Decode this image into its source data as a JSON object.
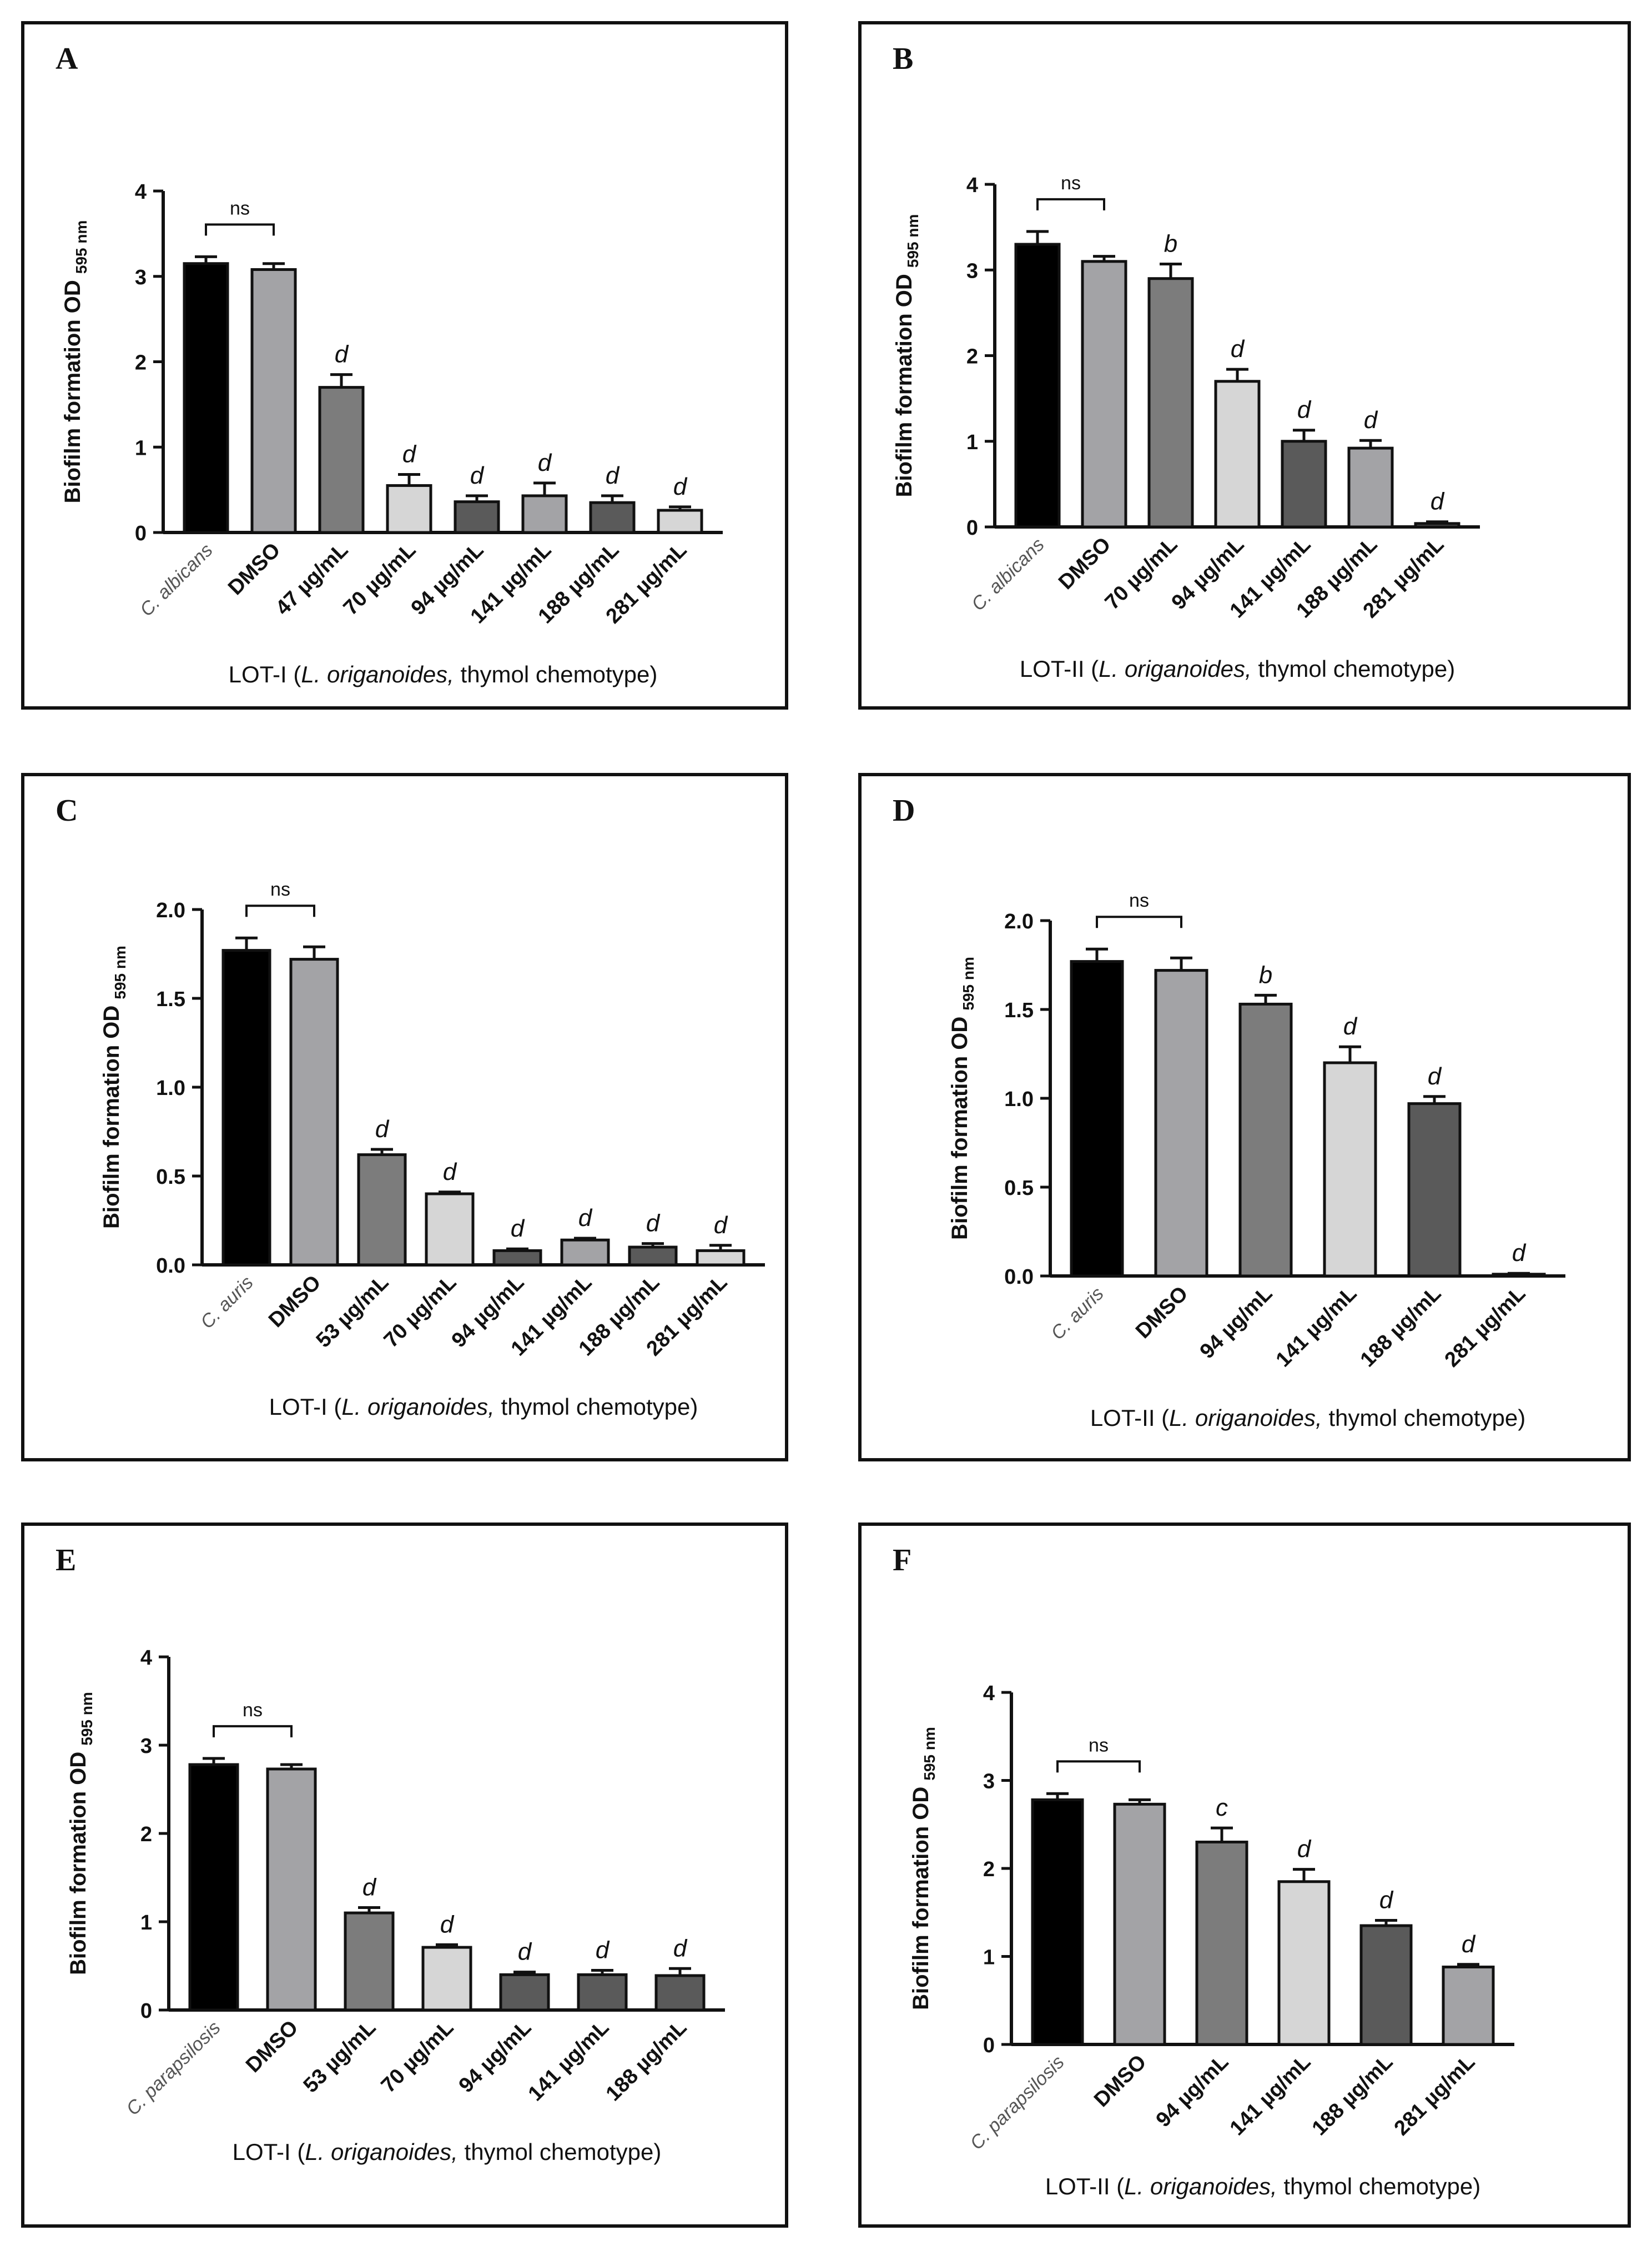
{
  "colors": {
    "axis": "#111111",
    "bar_fills": [
      "#000000",
      "#a3a3a6",
      "#7c7c7c",
      "#d6d6d6",
      "#5a5a5a",
      "#a3a3a6",
      "#e8e8e8"
    ]
  },
  "chart_data": [
    {
      "panel": "A",
      "type": "bar",
      "ylabel": "Biofilm formation OD",
      "ylabel_sub": "595 nm",
      "xlabel_pre": "LOT-I (",
      "xlabel_italic": "L. origanoides,",
      "xlabel_post": " thymol chemotype)",
      "ylim": [
        0,
        4
      ],
      "yticks": [
        "0",
        "1",
        "2",
        "3",
        "4"
      ],
      "categories": [
        "C. albicans",
        "DMSO",
        "47 µg/mL",
        "70 µg/mL",
        "94 µg/mL",
        "141 µg/mL",
        "188 µg/mL",
        "281 µg/mL"
      ],
      "values": [
        3.15,
        3.08,
        1.7,
        0.55,
        0.36,
        0.43,
        0.35,
        0.26
      ],
      "errors": [
        0.08,
        0.07,
        0.15,
        0.13,
        0.07,
        0.15,
        0.08,
        0.04
      ],
      "significance": [
        "",
        "",
        "d",
        "d",
        "d",
        "d",
        "d",
        "d"
      ],
      "ns_label": "ns",
      "fill_index": [
        0,
        1,
        2,
        3,
        4,
        1,
        4,
        3
      ]
    },
    {
      "panel": "B",
      "type": "bar",
      "ylabel": "Biofilm formation OD",
      "ylabel_sub": "595 nm",
      "xlabel_pre": "LOT-II (",
      "xlabel_italic": "L. origanoides,",
      "xlabel_post": " thymol chemotype)",
      "ylim": [
        0,
        4
      ],
      "yticks": [
        "0",
        "1",
        "2",
        "3",
        "4"
      ],
      "categories": [
        "C. albicans",
        "DMSO",
        "70 µg/mL",
        "94 µg/mL",
        "141 µg/mL",
        "188 µg/mL",
        "281 µg/mL"
      ],
      "values": [
        3.3,
        3.1,
        2.9,
        1.7,
        1.0,
        0.92,
        0.04
      ],
      "errors": [
        0.15,
        0.06,
        0.17,
        0.14,
        0.13,
        0.09,
        0.02
      ],
      "significance": [
        "",
        "",
        "b",
        "d",
        "d",
        "d",
        "d"
      ],
      "ns_label": "ns",
      "fill_index": [
        0,
        1,
        2,
        3,
        4,
        1,
        4
      ]
    },
    {
      "panel": "C",
      "type": "bar",
      "ylabel": "Biofilm formation OD",
      "ylabel_sub": "595 nm",
      "xlabel_pre": "LOT-I (",
      "xlabel_italic": "L. origanoides,",
      "xlabel_post": " thymol chemotype)",
      "ylim": [
        0,
        2.0
      ],
      "yticks": [
        "0.0",
        "0.5",
        "1.0",
        "1.5",
        "2.0"
      ],
      "categories": [
        "C. auris",
        "DMSO",
        "53 µg/mL",
        "70 µg/mL",
        "94 µg/mL",
        "141 µg/mL",
        "188 µg/mL",
        "281 µg/mL"
      ],
      "values": [
        1.77,
        1.72,
        0.62,
        0.4,
        0.08,
        0.14,
        0.1,
        0.08
      ],
      "errors": [
        0.07,
        0.07,
        0.03,
        0.01,
        0.01,
        0.01,
        0.02,
        0.03
      ],
      "significance": [
        "",
        "",
        "d",
        "d",
        "d",
        "d",
        "d",
        "d"
      ],
      "ns_label": "ns",
      "fill_index": [
        0,
        1,
        2,
        3,
        4,
        1,
        4,
        3
      ]
    },
    {
      "panel": "D",
      "type": "bar",
      "ylabel": "Biofilm formation OD",
      "ylabel_sub": "595 nm",
      "xlabel_pre": "LOT-II (",
      "xlabel_italic": "L. origanoides,",
      "xlabel_post": " thymol chemotype)",
      "ylim": [
        0,
        2.0
      ],
      "yticks": [
        "0.0",
        "0.5",
        "1.0",
        "1.5",
        "2.0"
      ],
      "categories": [
        "C. auris",
        "DMSO",
        "94 µg/mL",
        "141 µg/mL",
        "188 µg/mL",
        "281 µg/mL"
      ],
      "values": [
        1.77,
        1.72,
        1.53,
        1.2,
        0.97,
        0.01
      ],
      "errors": [
        0.07,
        0.07,
        0.05,
        0.09,
        0.04,
        0.005
      ],
      "significance": [
        "",
        "",
        "b",
        "d",
        "d",
        "d"
      ],
      "ns_label": "ns",
      "fill_index": [
        0,
        1,
        2,
        3,
        4,
        1
      ]
    },
    {
      "panel": "E",
      "type": "bar",
      "ylabel": "Biofilm formation OD",
      "ylabel_sub": "595 nm",
      "xlabel_pre": "LOT-I (",
      "xlabel_italic": "L. origanoides,",
      "xlabel_post": " thymol chemotype)",
      "ylim": [
        0,
        4
      ],
      "yticks": [
        "0",
        "1",
        "2",
        "3",
        "4"
      ],
      "categories": [
        "C. parapsilosis",
        "DMSO",
        "53 µg/mL",
        "70 µg/mL",
        "94 µg/mL",
        "141 µg/mL",
        "188 µg/mL"
      ],
      "values": [
        2.78,
        2.73,
        1.1,
        0.71,
        0.4,
        0.4,
        0.39
      ],
      "errors": [
        0.07,
        0.05,
        0.06,
        0.03,
        0.03,
        0.05,
        0.08
      ],
      "significance": [
        "",
        "",
        "d",
        "d",
        "d",
        "d",
        "d"
      ],
      "ns_label": "ns",
      "fill_index": [
        0,
        1,
        2,
        3,
        4,
        4,
        4
      ]
    },
    {
      "panel": "F",
      "type": "bar",
      "ylabel": "Biofilm formation OD",
      "ylabel_sub": "595 nm",
      "xlabel_pre": "LOT-II (",
      "xlabel_italic": "L. origanoides,",
      "xlabel_post": " thymol chemotype)",
      "ylim": [
        0,
        4
      ],
      "yticks": [
        "0",
        "1",
        "2",
        "3",
        "4"
      ],
      "categories": [
        "C. parapsilosis",
        "DMSO",
        "94 µg/mL",
        "141 µg/mL",
        "188 µg/mL",
        "281 µg/mL"
      ],
      "values": [
        2.78,
        2.73,
        2.3,
        1.85,
        1.35,
        0.88
      ],
      "errors": [
        0.07,
        0.05,
        0.16,
        0.14,
        0.06,
        0.03
      ],
      "significance": [
        "",
        "",
        "c",
        "d",
        "d",
        "d"
      ],
      "ns_label": "ns",
      "fill_index": [
        0,
        1,
        2,
        3,
        4,
        1
      ]
    }
  ]
}
